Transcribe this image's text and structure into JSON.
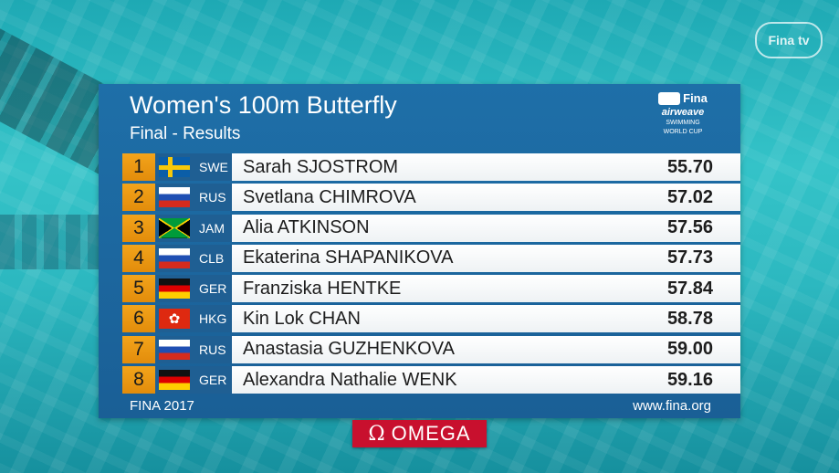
{
  "watermark": {
    "logo_text": "Fina tv"
  },
  "header": {
    "title": "Women's 100m Butterfly",
    "subtitle": "Final - Results"
  },
  "brand": {
    "mark_text": "Fina",
    "sub_text": "airweave",
    "small_line1": "SWIMMING",
    "small_line2": "WORLD CUP"
  },
  "results": [
    {
      "rank": "1",
      "flag": "swe",
      "code": "SWE",
      "name": "Sarah SJOSTROM",
      "time": "55.70"
    },
    {
      "rank": "2",
      "flag": "rus",
      "code": "RUS",
      "name": "Svetlana CHIMROVA",
      "time": "57.02"
    },
    {
      "rank": "3",
      "flag": "jam",
      "code": "JAM",
      "name": "Alia ATKINSON",
      "time": "57.56"
    },
    {
      "rank": "4",
      "flag": "rus",
      "code": "CLB",
      "name": "Ekaterina SHAPANIKOVA",
      "time": "57.73"
    },
    {
      "rank": "5",
      "flag": "ger",
      "code": "GER",
      "name": "Franziska HENTKE",
      "time": "57.84"
    },
    {
      "rank": "6",
      "flag": "hkg",
      "code": "HKG",
      "name": "Kin Lok CHAN",
      "time": "58.78"
    },
    {
      "rank": "7",
      "flag": "rus",
      "code": "RUS",
      "name": "Anastasia GUZHENKOVA",
      "time": "59.00"
    },
    {
      "rank": "8",
      "flag": "ger",
      "code": "GER",
      "name": "Alexandra Nathalie WENK",
      "time": "59.16"
    }
  ],
  "footer": {
    "left": "FINA 2017",
    "right": "www.fina.org"
  },
  "sponsor": {
    "symbol": "Ω",
    "text": "OMEGA"
  },
  "colors": {
    "rank_bg": "#f3a41b",
    "board_bg": "#1e6fa8",
    "sponsor_bg": "#c8102e"
  }
}
